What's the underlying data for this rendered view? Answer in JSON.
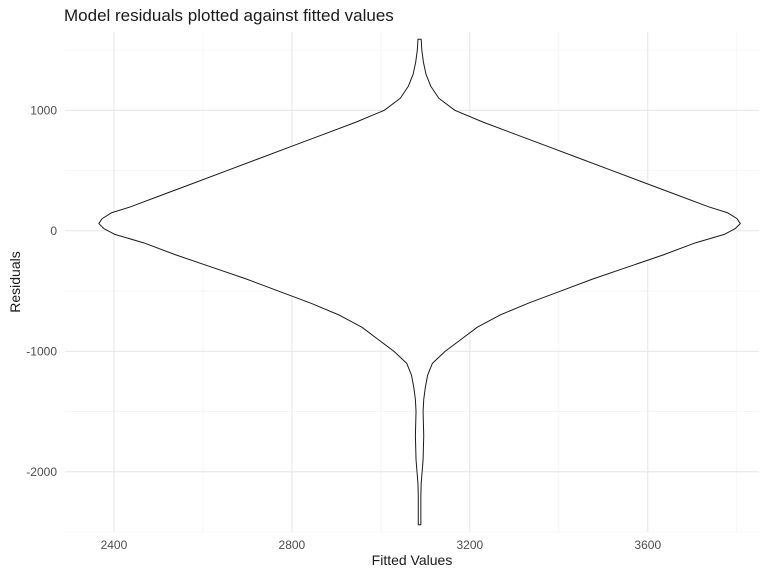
{
  "chart_data": {
    "type": "violin",
    "title": "Model residuals plotted against fitted values",
    "xlabel": "Fitted Values",
    "ylabel": "Residuals",
    "xlim": [
      2290,
      3850
    ],
    "ylim": [
      -2500,
      1650
    ],
    "x_ticks": [
      2400,
      2800,
      3200,
      3600
    ],
    "x_tick_labels": [
      "2400",
      "2800",
      "3200",
      "3600"
    ],
    "x_minor_ticks": [
      2600,
      3000,
      3400,
      3800
    ],
    "y_ticks": [
      -2000,
      -1000,
      0,
      1000
    ],
    "y_tick_labels": [
      "-2000",
      "-1000",
      "0",
      "1000"
    ],
    "y_minor_ticks": [
      -2500,
      -1500,
      -500,
      500,
      1500
    ],
    "grid": true,
    "violin": {
      "center": 3087,
      "halfwidth_max": 721,
      "y_min": -2440,
      "y_max": 1590,
      "density_profile": [
        [
          1590,
          0.005
        ],
        [
          1500,
          0.007
        ],
        [
          1400,
          0.012
        ],
        [
          1300,
          0.02
        ],
        [
          1200,
          0.035
        ],
        [
          1100,
          0.06
        ],
        [
          1000,
          0.11
        ],
        [
          900,
          0.2
        ],
        [
          800,
          0.3
        ],
        [
          700,
          0.4
        ],
        [
          600,
          0.5
        ],
        [
          500,
          0.6
        ],
        [
          400,
          0.7
        ],
        [
          300,
          0.8
        ],
        [
          200,
          0.9
        ],
        [
          150,
          0.96
        ],
        [
          100,
          0.99
        ],
        [
          60,
          1.0
        ],
        [
          20,
          0.985
        ],
        [
          -30,
          0.95
        ],
        [
          -100,
          0.86
        ],
        [
          -200,
          0.76
        ],
        [
          -300,
          0.65
        ],
        [
          -400,
          0.54
        ],
        [
          -500,
          0.44
        ],
        [
          -600,
          0.34
        ],
        [
          -700,
          0.25
        ],
        [
          -800,
          0.18
        ],
        [
          -900,
          0.13
        ],
        [
          -1000,
          0.08
        ],
        [
          -1100,
          0.04
        ],
        [
          -1200,
          0.025
        ],
        [
          -1300,
          0.018
        ],
        [
          -1400,
          0.013
        ],
        [
          -1500,
          0.011
        ],
        [
          -1600,
          0.012
        ],
        [
          -1700,
          0.013
        ],
        [
          -1800,
          0.012
        ],
        [
          -1900,
          0.011
        ],
        [
          -2000,
          0.008
        ],
        [
          -2100,
          0.005
        ],
        [
          -2200,
          0.004
        ],
        [
          -2300,
          0.004
        ],
        [
          -2440,
          0.004
        ]
      ]
    }
  }
}
